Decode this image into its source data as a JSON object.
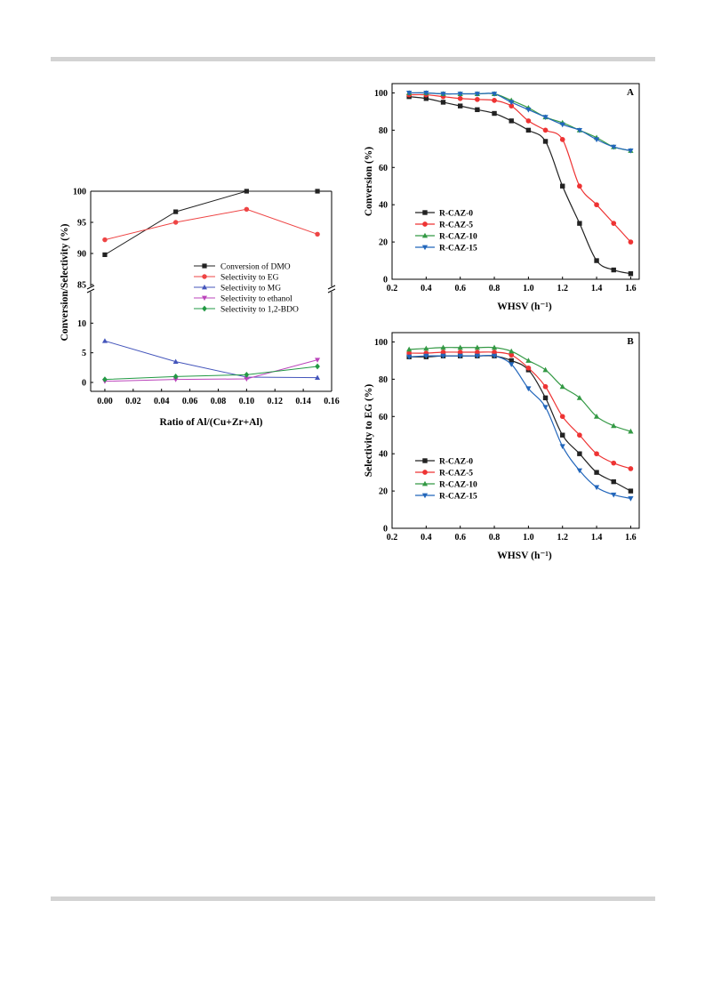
{
  "chart_data": [
    {
      "id": "left",
      "type": "line",
      "xlabel": "Ratio of Al/(Cu+Zr+Al)",
      "ylabel": "Conversion/Selectivity (%)",
      "xlim": [
        -0.01,
        0.16
      ],
      "xticks": [
        "0.00",
        "0.02",
        "0.04",
        "0.06",
        "0.08",
        "0.10",
        "0.12",
        "0.14",
        "0.16"
      ],
      "y_axis_break": true,
      "upper_ylim": [
        85,
        100
      ],
      "upper_yticks": [
        85,
        90,
        95,
        100
      ],
      "lower_ylim": [
        -1.5,
        15
      ],
      "lower_yticks": [
        0,
        5,
        10
      ],
      "x": [
        0.0,
        0.05,
        0.1,
        0.15
      ],
      "series": [
        {
          "name": "Conversion of DMO",
          "color": "#222222",
          "marker": "square",
          "segment": "upper",
          "values": [
            89.8,
            96.7,
            100.0,
            100.0
          ]
        },
        {
          "name": "Selectivity to EG",
          "color": "#ee4444",
          "marker": "circle",
          "segment": "upper",
          "values": [
            92.2,
            95.0,
            97.1,
            93.1
          ]
        },
        {
          "name": "Selectivity to MG",
          "color": "#4455bb",
          "marker": "triangle-up",
          "segment": "lower",
          "values": [
            7.0,
            3.5,
            0.9,
            0.8
          ]
        },
        {
          "name": "Selectivity to ethanol",
          "color": "#bb44bb",
          "marker": "triangle-down",
          "segment": "lower",
          "values": [
            0.2,
            0.5,
            0.6,
            3.8
          ]
        },
        {
          "name": "Selectivity to 1,2-BDO",
          "color": "#229944",
          "marker": "diamond",
          "segment": "lower",
          "values": [
            0.5,
            1.0,
            1.3,
            2.7
          ]
        }
      ],
      "legend_position": "center-right"
    },
    {
      "id": "a",
      "type": "line",
      "panel_label": "A",
      "xlabel": "WHSV (h⁻¹)",
      "ylabel": "Conversion (%)",
      "xlim": [
        0.2,
        1.65
      ],
      "ylim": [
        0,
        105
      ],
      "xticks": [
        "0.2",
        "0.4",
        "0.6",
        "0.8",
        "1.0",
        "1.2",
        "1.4",
        "1.6"
      ],
      "yticks": [
        "0",
        "20",
        "40",
        "60",
        "80",
        "100"
      ],
      "x": [
        0.3,
        0.4,
        0.5,
        0.6,
        0.7,
        0.8,
        0.9,
        1.0,
        1.1,
        1.2,
        1.3,
        1.4,
        1.5,
        1.6
      ],
      "series": [
        {
          "name": "R-CAZ-0",
          "color": "#222222",
          "marker": "square",
          "values": [
            98,
            97,
            95,
            93,
            91,
            89,
            85,
            80,
            74,
            50,
            30,
            10,
            5,
            3
          ]
        },
        {
          "name": "R-CAZ-5",
          "color": "#ee3333",
          "marker": "circle",
          "values": [
            99,
            99,
            98,
            97,
            96.5,
            96,
            93,
            85,
            80,
            75,
            50,
            40,
            30,
            20
          ]
        },
        {
          "name": "R-CAZ-10",
          "color": "#339944",
          "marker": "triangle-up",
          "values": [
            100,
            100,
            99.5,
            99.5,
            99.5,
            99.5,
            96,
            92,
            87,
            84,
            80,
            76,
            71,
            69
          ]
        },
        {
          "name": "R-CAZ-15",
          "color": "#2266bb",
          "marker": "triangle-down",
          "values": [
            100,
            100,
            99.5,
            99.5,
            99.5,
            99.5,
            95,
            91,
            87,
            83,
            80,
            75,
            71,
            69
          ]
        }
      ],
      "legend_position": "bottom-left"
    },
    {
      "id": "b",
      "type": "line",
      "panel_label": "B",
      "xlabel": "WHSV (h⁻¹)",
      "ylabel": "Selectivity to EG (%)",
      "xlim": [
        0.2,
        1.65
      ],
      "ylim": [
        0,
        105
      ],
      "xticks": [
        "0.2",
        "0.4",
        "0.6",
        "0.8",
        "1.0",
        "1.2",
        "1.4",
        "1.6"
      ],
      "yticks": [
        "0",
        "20",
        "40",
        "60",
        "80",
        "100"
      ],
      "x": [
        0.3,
        0.4,
        0.5,
        0.6,
        0.7,
        0.8,
        0.9,
        1.0,
        1.1,
        1.2,
        1.3,
        1.4,
        1.5,
        1.6
      ],
      "series": [
        {
          "name": "R-CAZ-0",
          "color": "#222222",
          "marker": "square",
          "values": [
            92,
            92,
            92.5,
            92.5,
            92.5,
            92.5,
            90,
            85,
            70,
            50,
            40,
            30,
            25,
            20
          ]
        },
        {
          "name": "R-CAZ-5",
          "color": "#ee3333",
          "marker": "circle",
          "values": [
            94,
            94,
            94.5,
            94.5,
            94.5,
            94.5,
            93,
            86,
            76,
            60,
            50,
            40,
            35,
            32
          ]
        },
        {
          "name": "R-CAZ-10",
          "color": "#339944",
          "marker": "triangle-up",
          "values": [
            96,
            96.5,
            97,
            97,
            97,
            97,
            95,
            90,
            85,
            76,
            70,
            60,
            55,
            52
          ]
        },
        {
          "name": "R-CAZ-15",
          "color": "#2266bb",
          "marker": "triangle-down",
          "values": [
            92,
            92.5,
            92.5,
            92.5,
            92.5,
            92.5,
            88,
            75,
            65,
            44,
            31,
            22,
            18,
            16
          ]
        }
      ],
      "legend_position": "bottom-left"
    }
  ]
}
